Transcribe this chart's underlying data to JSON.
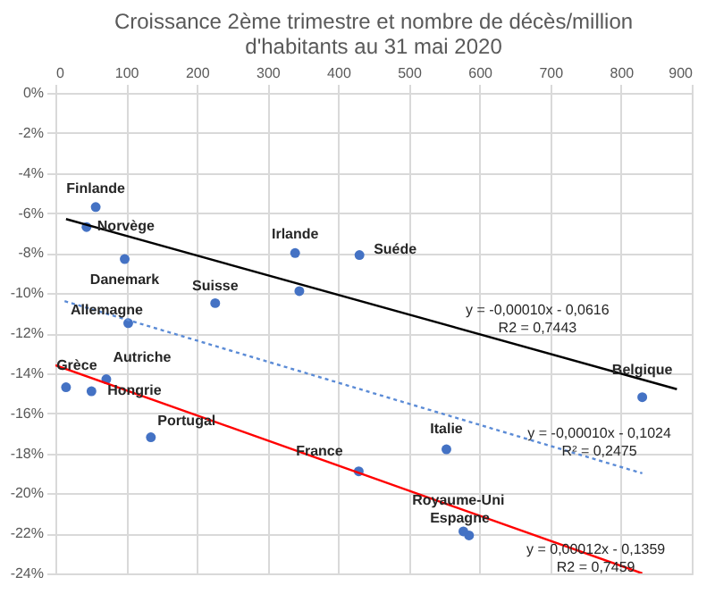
{
  "chart_data": {
    "type": "scatter",
    "title": "Croissance 2ème trimestre et nombre de décès/million d'habitants au 31 mai 2020",
    "xlim": [
      0,
      900
    ],
    "xticks": [
      0,
      100,
      200,
      300,
      400,
      500,
      600,
      700,
      800,
      900
    ],
    "ylim": [
      -24,
      0
    ],
    "yticks": [
      {
        "value": 0,
        "label": "0%"
      },
      {
        "value": -2,
        "label": "-2%"
      },
      {
        "value": -4,
        "label": "-4%"
      },
      {
        "value": -6,
        "label": "-6%"
      },
      {
        "value": -8,
        "label": "-8%"
      },
      {
        "value": -10,
        "label": "-10%"
      },
      {
        "value": -12,
        "label": "-12%"
      },
      {
        "value": -14,
        "label": "-14%"
      },
      {
        "value": -16,
        "label": "-16%"
      },
      {
        "value": -18,
        "label": "-18%"
      },
      {
        "value": -20,
        "label": "-20%"
      },
      {
        "value": -22,
        "label": "-22%"
      },
      {
        "value": -24,
        "label": "-24%"
      }
    ],
    "grid": true,
    "series": [
      {
        "color": "#4472c4",
        "marker": "circle",
        "x": [
          57,
          44,
          98,
          339,
          430,
          345,
          226,
          103,
          15,
          72,
          51,
          135,
          429,
          553,
          830,
          585,
          577
        ],
        "values": [
          -5.7,
          -6.7,
          -8.3,
          -8.0,
          -8.1,
          -9.9,
          -10.5,
          -11.5,
          -14.7,
          -14.3,
          -14.9,
          -17.2,
          -18.9,
          -17.8,
          -15.2,
          -22.1,
          -21.9
        ]
      },
      {
        "type": "line",
        "color": "#000000",
        "line_style": "solid",
        "x": [
          15,
          879
        ],
        "values": [
          -6.3,
          -14.8
        ]
      },
      {
        "type": "line",
        "color": "#5b8bd6",
        "line_style": "dotted",
        "x": [
          13,
          830
        ],
        "values": [
          -10.4,
          -19.0
        ]
      },
      {
        "type": "line",
        "color": "#ff0000",
        "line_style": "solid",
        "x": [
          0,
          830
        ],
        "values": [
          -13.6,
          -24.0
        ]
      }
    ],
    "annotations": [
      {
        "text": "Finlande",
        "x": 57,
        "y": -5.7
      },
      {
        "text": "Norvège",
        "x": 44,
        "y": -6.7
      },
      {
        "text": "Danemark",
        "x": 98,
        "y": -8.3
      },
      {
        "text": "Irlande",
        "x": 339,
        "y": -8.0
      },
      {
        "text": "Suéde",
        "x": 430,
        "y": -8.1
      },
      {
        "text": "Suisse",
        "x": 226,
        "y": -10.5
      },
      {
        "text": "Allemagne",
        "x": 103,
        "y": -11.5
      },
      {
        "text": "Grèce",
        "x": 15,
        "y": -14.7
      },
      {
        "text": "Autriche",
        "x": 72,
        "y": -14.3
      },
      {
        "text": "Hongrie",
        "x": 51,
        "y": -14.9
      },
      {
        "text": "Portugal",
        "x": 135,
        "y": -17.2
      },
      {
        "text": "France",
        "x": 429,
        "y": -18.9
      },
      {
        "text": "Italie",
        "x": 553,
        "y": -17.8
      },
      {
        "text": "Belgique",
        "x": 830,
        "y": -15.2
      },
      {
        "text": "Royaume-Uni",
        "x": 585,
        "y": -22.1
      },
      {
        "text": "Espagne",
        "x": 577,
        "y": -21.9
      },
      "y = -0,00010x - 0,0616",
      "R2 = 0,7443",
      "y = -0,00010x - 0,1024",
      "R² = 0,2475",
      "y = 0,00012x - 0,1359",
      "R2 = 0,7459"
    ]
  }
}
